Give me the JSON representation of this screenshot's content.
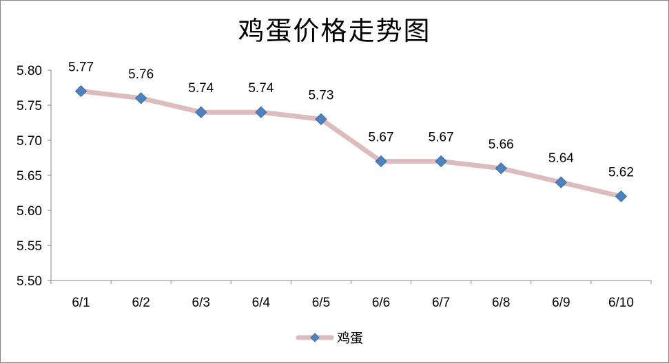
{
  "chart_data": {
    "type": "line",
    "title": "鸡蛋价格走势图",
    "categories": [
      "6/1",
      "6/2",
      "6/3",
      "6/4",
      "6/5",
      "6/6",
      "6/7",
      "6/8",
      "6/9",
      "6/10"
    ],
    "series": [
      {
        "name": "鸡蛋",
        "values": [
          5.77,
          5.76,
          5.74,
          5.74,
          5.73,
          5.67,
          5.67,
          5.66,
          5.64,
          5.62
        ]
      }
    ],
    "data_labels": [
      "5.77",
      "5.76",
      "5.74",
      "5.74",
      "5.73",
      "5.67",
      "5.67",
      "5.66",
      "5.64",
      "5.62"
    ],
    "y_ticks": [
      "5.50",
      "5.55",
      "5.60",
      "5.65",
      "5.70",
      "5.75",
      "5.80"
    ],
    "ylim": [
      5.5,
      5.8
    ],
    "grid": false,
    "legend_position": "bottom",
    "colors": {
      "line": "#dcbcbc",
      "marker": "#4f81bd",
      "marker_stroke": "#3a6ea5",
      "axis": "#868686"
    }
  }
}
